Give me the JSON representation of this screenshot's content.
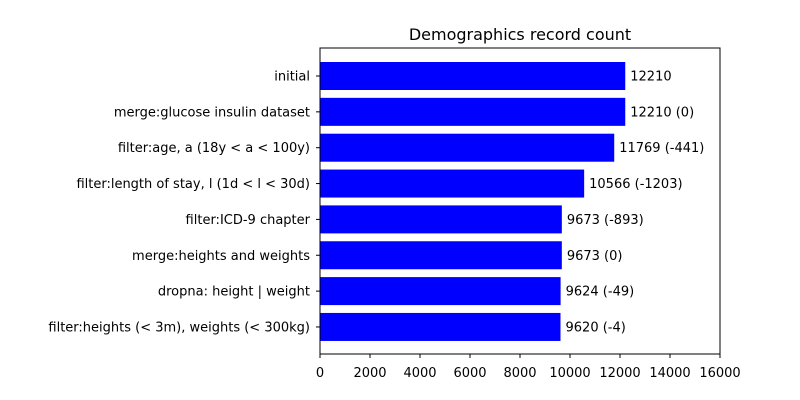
{
  "chart_data": {
    "type": "bar",
    "orientation": "horizontal",
    "title": "Demographics record count",
    "xlabel": "",
    "ylabel": "",
    "xlim": [
      0,
      16000
    ],
    "xticks": [
      0,
      2000,
      4000,
      6000,
      8000,
      10000,
      12000,
      14000,
      16000
    ],
    "categories": [
      "initial",
      "merge:glucose insulin dataset",
      "filter:age, a (18y < a < 100y)",
      "filter:length of stay, l (1d < l < 30d)",
      "filter:ICD-9 chapter",
      "merge:heights and weights",
      "dropna: height | weight",
      "filter:heights (< 3m), weights (< 300kg)"
    ],
    "values": [
      12210,
      12210,
      11769,
      10566,
      9673,
      9673,
      9624,
      9620
    ],
    "value_labels": [
      "12210",
      "12210 (0)",
      "11769 (-441)",
      "10566 (-1203)",
      "9673 (-893)",
      "9673 (0)",
      "9624 (-49)",
      "9620 (-4)"
    ],
    "bar_color": "#0000ff",
    "grid": false,
    "legend": "none"
  }
}
